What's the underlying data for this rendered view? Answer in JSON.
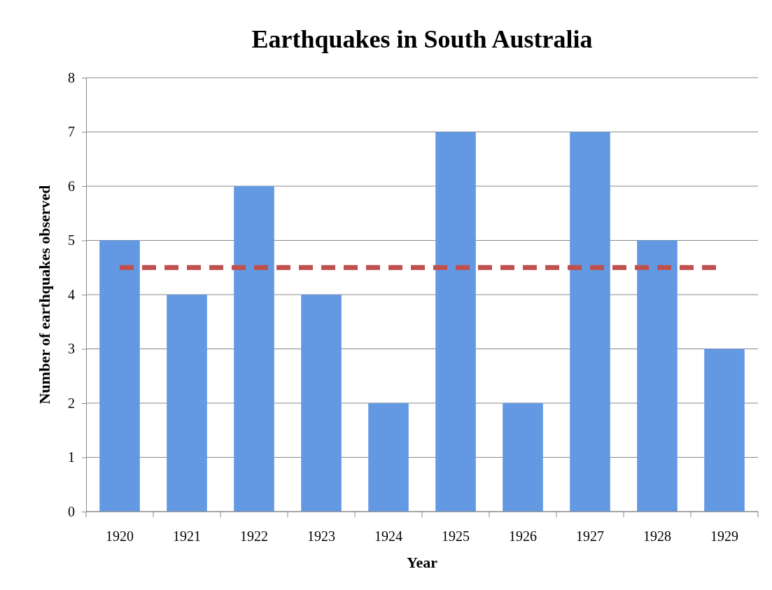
{
  "chart_data": {
    "type": "bar",
    "title": "Earthquakes in South Australia",
    "xlabel": "Year",
    "ylabel": "Number of earthquakes observed",
    "categories": [
      "1920",
      "1921",
      "1922",
      "1923",
      "1924",
      "1925",
      "1926",
      "1927",
      "1928",
      "1929"
    ],
    "values": [
      5,
      4,
      6,
      4,
      2,
      7,
      2,
      7,
      5,
      3
    ],
    "color": "#6399e2",
    "ylim": [
      0,
      8
    ],
    "yticks": [
      0,
      1,
      2,
      3,
      4,
      5,
      6,
      7,
      8
    ],
    "grid": "y",
    "ref_lines": [
      {
        "axis": "y",
        "value": 4.5,
        "color": "#c0504d",
        "line_style": "dashed"
      }
    ]
  }
}
